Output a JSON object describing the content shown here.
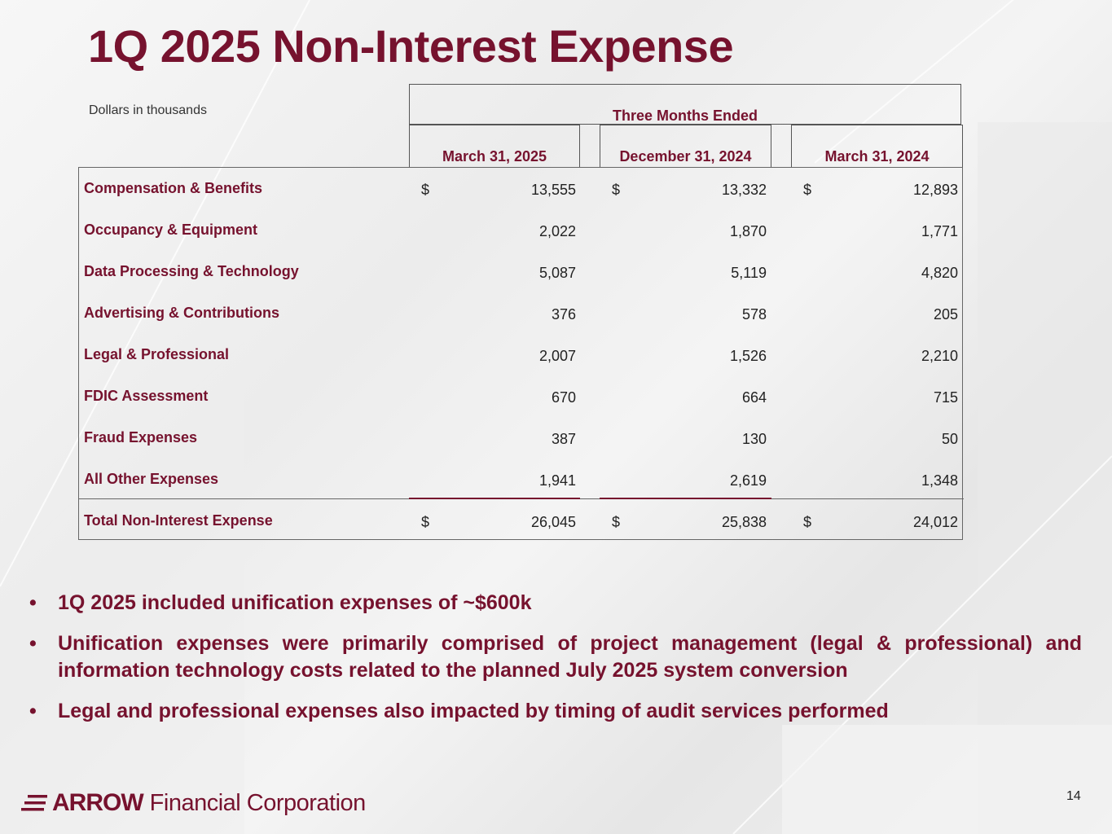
{
  "title": "1Q 2025 Non-Interest Expense",
  "units_note": "Dollars in thousands",
  "table": {
    "group_header": "Three Months Ended",
    "columns": [
      "March 31, 2025",
      "December 31, 2024",
      "March 31, 2024"
    ],
    "currency_symbol": "$",
    "rows": [
      {
        "label": "Compensation & Benefits",
        "values": [
          "13,555",
          "13,332",
          "12,893"
        ]
      },
      {
        "label": "Occupancy & Equipment",
        "values": [
          "2,022",
          "1,870",
          "1,771"
        ]
      },
      {
        "label": "Data Processing & Technology",
        "values": [
          "5,087",
          "5,119",
          "4,820"
        ]
      },
      {
        "label": "Advertising & Contributions",
        "values": [
          "376",
          "578",
          "205"
        ]
      },
      {
        "label": "Legal & Professional",
        "values": [
          "2,007",
          "1,526",
          "2,210"
        ]
      },
      {
        "label": "FDIC Assessment",
        "values": [
          "670",
          "664",
          "715"
        ]
      },
      {
        "label": "Fraud Expenses",
        "values": [
          "387",
          "130",
          "50"
        ]
      },
      {
        "label": "All Other Expenses",
        "values": [
          "1,941",
          "2,619",
          "1,348"
        ]
      }
    ],
    "total": {
      "label": "Total Non-Interest Expense",
      "values": [
        "26,045",
        "25,838",
        "24,012"
      ]
    }
  },
  "bullets": [
    "1Q 2025 included unification expenses of ~$600k",
    "Unification expenses were primarily comprised of project management (legal & professional) and information technology costs related to the planned July 2025 system conversion",
    "Legal and professional expenses also impacted by timing of audit services performed"
  ],
  "bullet_char": "•",
  "logo": {
    "mark": "ARROW",
    "text": "Financial Corporation",
    "icon": "arrow-logo-icon"
  },
  "page_number": "14",
  "colors": {
    "brand": "#76122e",
    "text": "#222222",
    "border": "#555555"
  }
}
